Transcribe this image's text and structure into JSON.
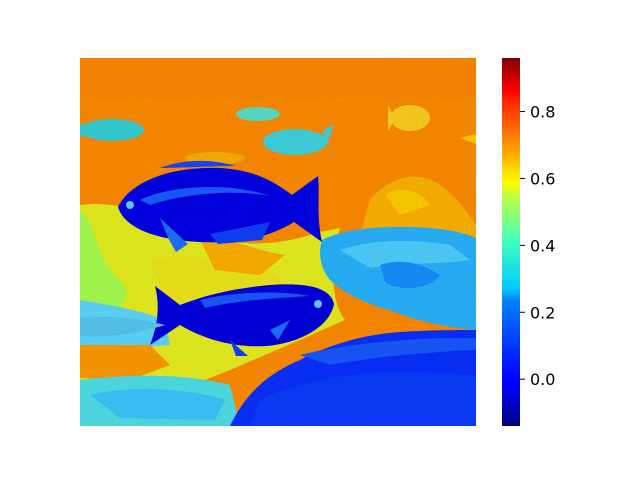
{
  "chart_data": {
    "type": "heatmap",
    "title": "",
    "xlabel": "",
    "ylabel": "",
    "colormap": "jet",
    "colorbar": {
      "vmin": -0.14,
      "vmax": 0.96,
      "ticks": [
        0.0,
        0.2,
        0.4,
        0.6,
        0.8
      ],
      "tick_labels": [
        "0.0",
        "0.2",
        "0.4",
        "0.6",
        "0.8"
      ]
    },
    "axes_visible": false,
    "image_content": "pseudocolor heatmap of an underwater scene with fish swimming over rocks and dark seabed",
    "regions": [
      {
        "name": "water-background",
        "value": 0.68
      },
      {
        "name": "large-fish-upper",
        "value": -0.05
      },
      {
        "name": "large-fish-lower",
        "value": -0.05
      },
      {
        "name": "small-fish-distant",
        "value": 0.3
      },
      {
        "name": "rock-right",
        "value": 0.25
      },
      {
        "name": "rocks-bright-left",
        "value": 0.55
      },
      {
        "name": "seabed-dark",
        "value": 0.05
      }
    ]
  }
}
